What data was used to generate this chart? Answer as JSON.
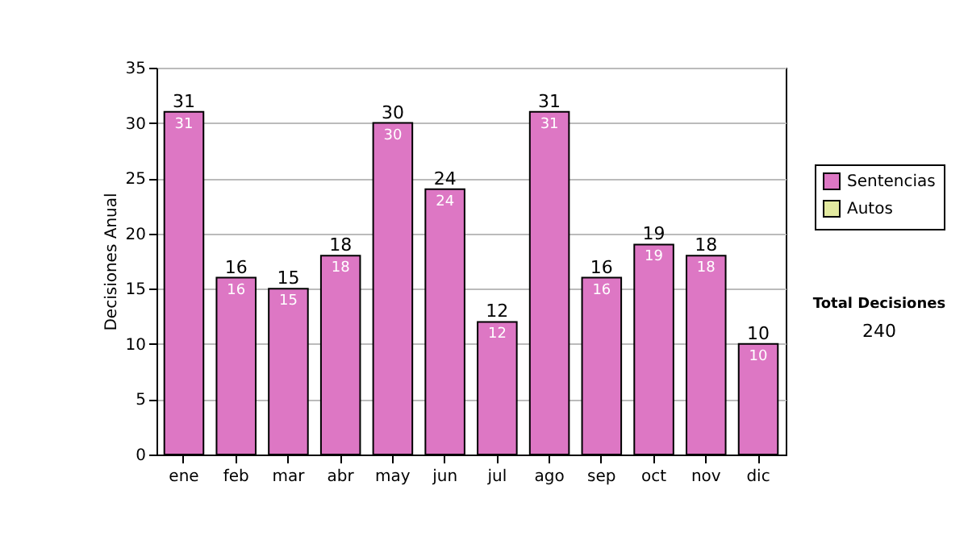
{
  "chart_data": {
    "type": "bar",
    "ylabel": "Decisiones Anual",
    "categories": [
      "ene",
      "feb",
      "mar",
      "abr",
      "may",
      "jun",
      "jul",
      "ago",
      "sep",
      "oct",
      "nov",
      "dic"
    ],
    "series": [
      {
        "name": "Sentencias",
        "color": "#dd77c4",
        "values": [
          31,
          16,
          15,
          18,
          30,
          24,
          12,
          31,
          16,
          19,
          18,
          10
        ]
      },
      {
        "name": "Autos",
        "color": "#e3eaa0",
        "values": [
          null,
          null,
          null,
          null,
          null,
          null,
          null,
          null,
          null,
          null,
          null,
          null
        ]
      }
    ],
    "totals": [
      "31",
      "16",
      "15",
      "18",
      "30",
      "24",
      "12",
      "31",
      "16",
      "19",
      "18",
      "10"
    ],
    "data_labels": true,
    "ylim": [
      0,
      35
    ],
    "yticks": [
      0,
      5,
      10,
      15,
      20,
      25,
      30,
      35
    ],
    "grid": "y",
    "legend": "right",
    "annotations": [
      "Total Decisiones",
      "240"
    ]
  }
}
